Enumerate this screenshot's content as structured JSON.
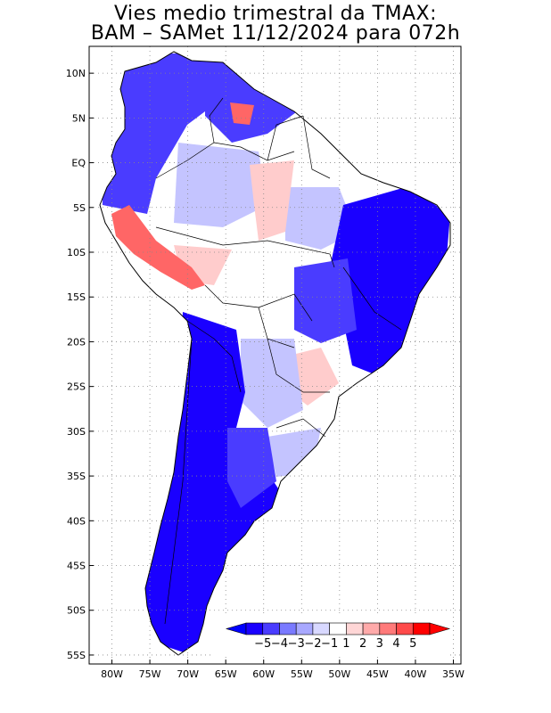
{
  "title": {
    "line1": "Vies medio trimestral da TMAX:",
    "line2": "BAM – SAMet 11/12/2024  para 072h"
  },
  "axes": {
    "lat_labels": [
      "10N",
      "5N",
      "EQ",
      "5S",
      "10S",
      "15S",
      "20S",
      "25S",
      "30S",
      "35S",
      "40S",
      "45S",
      "50S",
      "55S"
    ],
    "lon_labels": [
      "80W",
      "75W",
      "70W",
      "65W",
      "60W",
      "55W",
      "50W",
      "45W",
      "40W",
      "35W"
    ],
    "lat_range": [
      13,
      -56
    ],
    "lon_range": [
      -83,
      -34
    ]
  },
  "legend": {
    "labels": [
      "−5",
      "−4",
      "−3",
      "−2",
      "−1",
      "1",
      "2",
      "3",
      "4",
      "5"
    ],
    "colors": [
      "#1a00ff",
      "#4a3cff",
      "#7a7aff",
      "#a8a8ff",
      "#d8d8ff",
      "#ffffff",
      "#ffd6d6",
      "#ffaaaa",
      "#ff7a7a",
      "#ff4a4a",
      "#ff0000"
    ],
    "low_arrow_color": "#0000ff",
    "high_arrow_color": "#ff0000"
  },
  "colors": {
    "strong_cold": "#1a00ff",
    "cold": "#4a3cff",
    "moderate_cold": "#7a7aff",
    "light_cold": "#c4c4ff",
    "neutral": "#ffffff",
    "light_warm": "#ffcccc",
    "warm": "#ff6666",
    "strong_warm": "#ff0000"
  }
}
